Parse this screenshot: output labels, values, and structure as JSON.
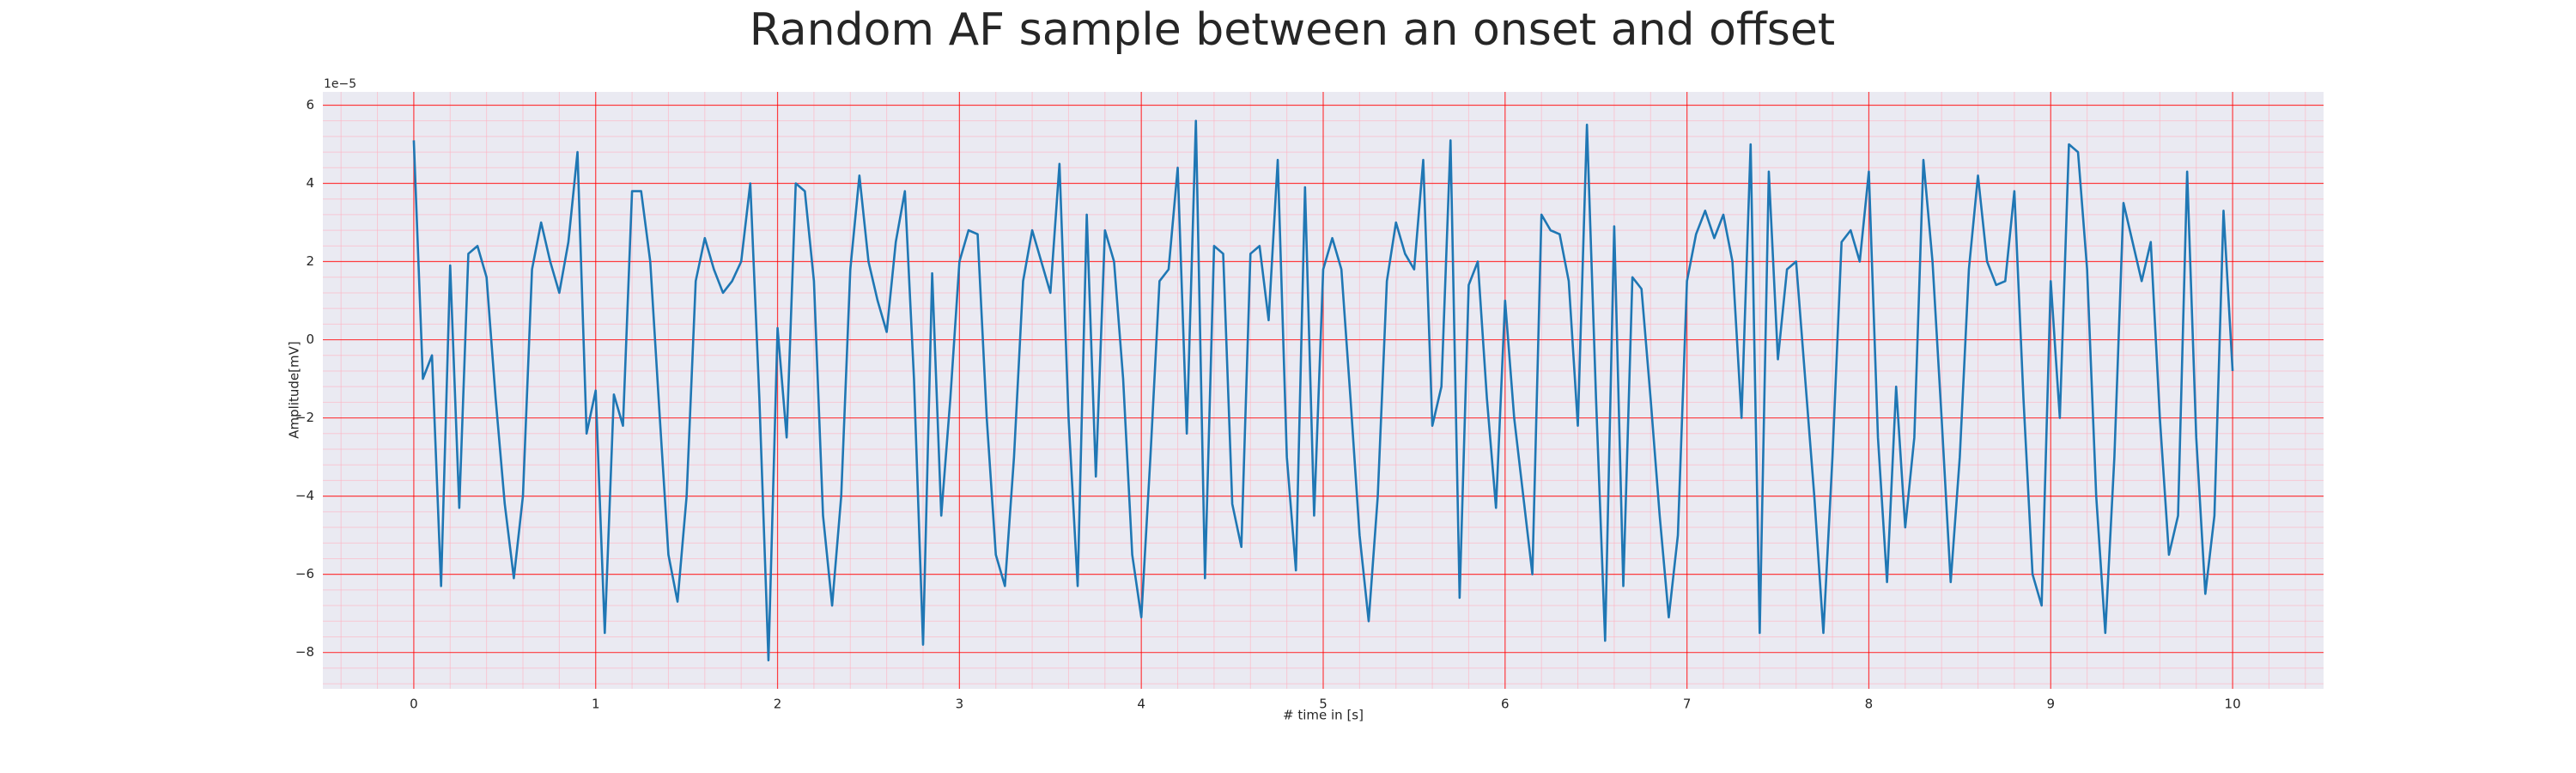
{
  "chart_data": {
    "type": "line",
    "title": "Random AF sample between an onset and offset",
    "xlabel": "# time in [s]",
    "ylabel": "Amplitude[mV]",
    "y_offset_label": "1e−5",
    "x": [
      0,
      0.05,
      0.1,
      0.15,
      0.2,
      0.25,
      0.3,
      0.35,
      0.4,
      0.45,
      0.5,
      0.55,
      0.6,
      0.65,
      0.7,
      0.75,
      0.8,
      0.85,
      0.9,
      0.95,
      1,
      1.05,
      1.1,
      1.15,
      1.2,
      1.25,
      1.3,
      1.35,
      1.4,
      1.45,
      1.5,
      1.55,
      1.6,
      1.65,
      1.7,
      1.75,
      1.8,
      1.85,
      1.9,
      1.95,
      2,
      2.05,
      2.1,
      2.15,
      2.2,
      2.25,
      2.3,
      2.35,
      2.4,
      2.45,
      2.5,
      2.55,
      2.6,
      2.65,
      2.7,
      2.75,
      2.8,
      2.85,
      2.9,
      2.95,
      3,
      3.05,
      3.1,
      3.15,
      3.2,
      3.25,
      3.3,
      3.35,
      3.4,
      3.45,
      3.5,
      3.55,
      3.6,
      3.65,
      3.7,
      3.75,
      3.8,
      3.85,
      3.9,
      3.95,
      4,
      4.05,
      4.1,
      4.15,
      4.2,
      4.25,
      4.3,
      4.35,
      4.4,
      4.45,
      4.5,
      4.55,
      4.6,
      4.65,
      4.7,
      4.75,
      4.8,
      4.85,
      4.9,
      4.95,
      5,
      5.05,
      5.1,
      5.15,
      5.2,
      5.25,
      5.3,
      5.35,
      5.4,
      5.45,
      5.5,
      5.55,
      5.6,
      5.65,
      5.7,
      5.75,
      5.8,
      5.85,
      5.9,
      5.95,
      6,
      6.05,
      6.1,
      6.15,
      6.2,
      6.25,
      6.3,
      6.35,
      6.4,
      6.45,
      6.5,
      6.55,
      6.6,
      6.65,
      6.7,
      6.75,
      6.8,
      6.85,
      6.9,
      6.95,
      7,
      7.05,
      7.1,
      7.15,
      7.2,
      7.25,
      7.3,
      7.35,
      7.4,
      7.45,
      7.5,
      7.55,
      7.6,
      7.65,
      7.7,
      7.75,
      7.8,
      7.85,
      7.9,
      7.95,
      8,
      8.05,
      8.1,
      8.15,
      8.2,
      8.25,
      8.3,
      8.35,
      8.4,
      8.45,
      8.5,
      8.55,
      8.6,
      8.65,
      8.7,
      8.75,
      8.8,
      8.85,
      8.9,
      8.95,
      9,
      9.05,
      9.1,
      9.15,
      9.2,
      9.25,
      9.3,
      9.35,
      9.4,
      9.45,
      9.5,
      9.55,
      9.6,
      9.65,
      9.7,
      9.75,
      9.8,
      9.85,
      9.9,
      9.95,
      10
    ],
    "series": [
      {
        "color": "#1f77b4",
        "values": [
          5.1,
          -1.0,
          -0.4,
          -6.3,
          1.9,
          -4.3,
          2.2,
          2.4,
          1.6,
          -1.5,
          -4.2,
          -6.1,
          -4.0,
          1.8,
          3.0,
          2.0,
          1.2,
          2.5,
          4.8,
          -2.4,
          -1.3,
          -7.5,
          -1.4,
          -2.2,
          3.8,
          3.8,
          2.0,
          -1.8,
          -5.5,
          -6.7,
          -4.0,
          1.5,
          2.6,
          1.8,
          1.2,
          1.5,
          2.0,
          4.0,
          -1.5,
          -8.2,
          0.3,
          -2.5,
          4.0,
          3.8,
          1.5,
          -4.5,
          -6.8,
          -4.0,
          1.8,
          4.2,
          2.0,
          1.0,
          0.2,
          2.5,
          3.8,
          -1.0,
          -7.8,
          1.7,
          -4.5,
          -1.5,
          2.0,
          2.8,
          2.7,
          -2.0,
          -5.5,
          -6.3,
          -3.0,
          1.5,
          2.8,
          2.0,
          1.2,
          4.5,
          -2.0,
          -6.3,
          3.2,
          -3.5,
          2.8,
          2.0,
          -1.0,
          -5.5,
          -7.1,
          -3.0,
          1.5,
          1.8,
          4.4,
          -2.4,
          5.6,
          -6.1,
          2.4,
          2.2,
          -4.2,
          -5.3,
          2.2,
          2.4,
          0.5,
          4.6,
          -3.0,
          -5.9,
          3.9,
          -4.5,
          1.8,
          2.6,
          1.8,
          -1.5,
          -5.0,
          -7.2,
          -4.0,
          1.5,
          3.0,
          2.2,
          1.8,
          4.6,
          -2.2,
          -1.2,
          5.1,
          -6.6,
          1.4,
          2.0,
          -1.5,
          -4.3,
          1.0,
          -2.0,
          -4.0,
          -6.0,
          3.2,
          2.8,
          2.7,
          1.5,
          -2.2,
          5.5,
          -1.5,
          -7.7,
          2.9,
          -6.3,
          1.6,
          1.3,
          -1.5,
          -4.5,
          -7.1,
          -5.0,
          1.5,
          2.7,
          3.3,
          2.6,
          3.2,
          2.0,
          -2.0,
          5.0,
          -7.5,
          4.3,
          -0.5,
          1.8,
          2.0,
          -1.0,
          -4.0,
          -7.5,
          -3.0,
          2.5,
          2.8,
          2.0,
          4.3,
          -2.5,
          -6.2,
          -1.2,
          -4.8,
          -2.5,
          4.6,
          2.0,
          -2.0,
          -6.2,
          -3.0,
          1.8,
          4.2,
          2.0,
          1.4,
          1.5,
          3.8,
          -1.5,
          -6.0,
          -6.8,
          1.5,
          -2.0,
          5.0,
          4.8,
          1.8,
          -4.0,
          -7.5,
          -3.0,
          3.5,
          2.5,
          1.5,
          2.5,
          -2.0,
          -5.5,
          -4.5,
          4.3,
          -2.5,
          -6.5,
          -4.5,
          3.3,
          -0.8
        ]
      }
    ],
    "xlim": [
      -0.5,
      10.5
    ],
    "ylim": [
      -8.93,
      6.34
    ],
    "xticks": [
      0,
      1,
      2,
      3,
      4,
      5,
      6,
      7,
      8,
      9,
      10
    ],
    "yticks": [
      {
        "value": -8,
        "label": "−8"
      },
      {
        "value": -6,
        "label": "−6"
      },
      {
        "value": -4,
        "label": "−4"
      },
      {
        "value": -2,
        "label": "−2"
      },
      0,
      2,
      4,
      6
    ],
    "grid": true,
    "minor_grid": true,
    "background": "#eaeaf2",
    "grid_color": "#ff0000",
    "minor_grid_color": "#ffb0c0"
  }
}
